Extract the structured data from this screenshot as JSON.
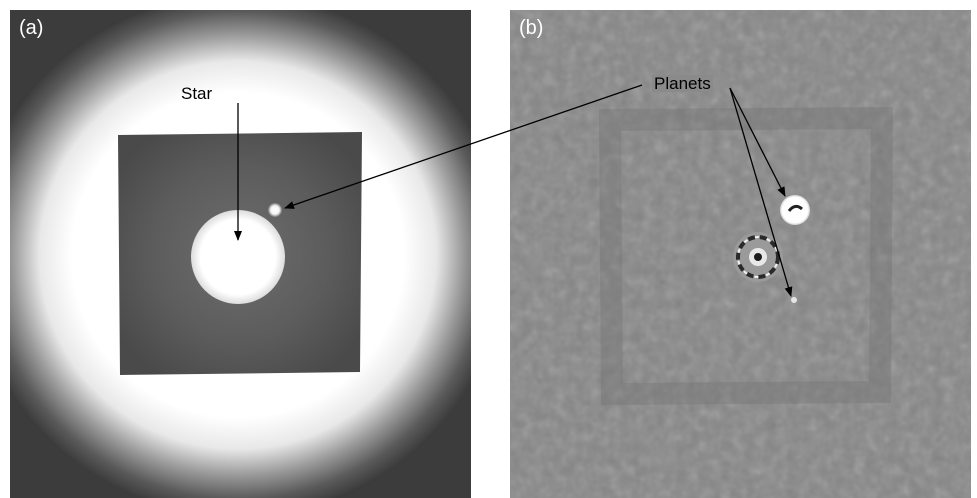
{
  "panel_a": {
    "label": "(a)",
    "annotation": "Star"
  },
  "panel_b": {
    "label": "(b)",
    "annotation": "Planets"
  },
  "colors": {
    "arrow": "#000000",
    "background_b": "#858585"
  }
}
